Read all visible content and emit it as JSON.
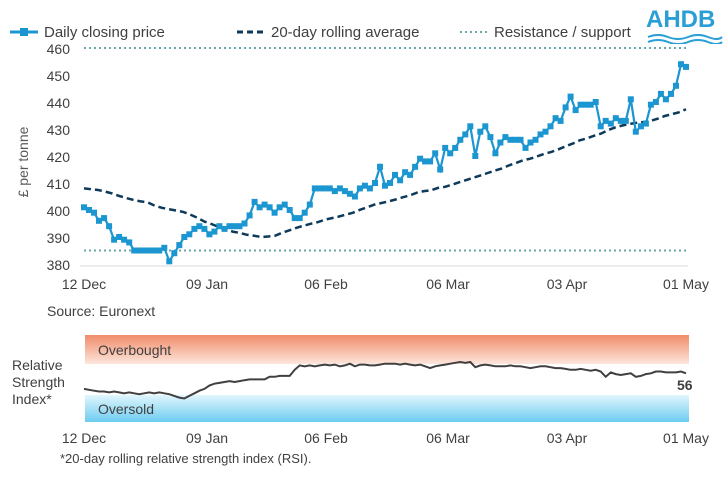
{
  "logo": {
    "text": "AHDB",
    "color": "#2a9fd6"
  },
  "colors": {
    "price": "#1b96d0",
    "average": "#0e3a5a",
    "resistance": "#6aa7a8",
    "rsi": "#404040",
    "overbought": "#f4a58a",
    "oversold": "#7fd0f0"
  },
  "chart_data": [
    {
      "type": "line",
      "x_labels": [
        "12 Dec",
        "09 Jan",
        "06 Feb",
        "06 Mar",
        "03 Apr",
        "01 May"
      ],
      "ylabel": "£ per tonne",
      "ylim": [
        380,
        460
      ],
      "yticks": [
        380,
        390,
        400,
        410,
        420,
        430,
        440,
        450,
        460
      ],
      "legend": {
        "position": "top",
        "entries": [
          "Daily closing price",
          "20-day rolling average",
          "Resistance / support"
        ]
      },
      "series": [
        {
          "name": "Daily closing price",
          "style": "line-square-markers",
          "values": [
            401,
            400,
            399,
            396,
            397,
            394,
            389,
            390,
            389,
            388,
            385,
            385,
            385,
            385,
            385,
            385,
            386,
            381,
            384,
            387,
            390,
            391,
            393,
            394,
            393,
            391,
            392,
            394,
            393,
            394,
            394,
            394,
            395,
            398,
            403,
            401,
            402,
            401,
            399,
            401,
            402,
            400,
            397,
            397,
            399,
            402,
            408,
            408,
            408,
            408,
            407,
            408,
            407,
            406,
            405,
            408,
            409,
            408,
            410,
            416,
            409,
            410,
            413,
            411,
            414,
            413,
            416,
            419,
            418,
            418,
            421,
            415,
            423,
            421,
            423,
            426,
            428,
            431,
            420,
            429,
            431,
            427,
            421,
            425,
            427,
            426,
            426,
            426,
            423,
            425,
            426,
            428,
            429,
            431,
            434,
            433,
            438,
            442,
            437,
            439,
            439,
            439,
            440,
            431,
            433,
            432,
            434,
            433,
            433,
            441,
            429,
            431,
            432,
            439,
            440,
            443,
            441,
            443,
            446,
            454,
            453
          ]
        },
        {
          "name": "20-day rolling average",
          "style": "dashed",
          "values": [
            408,
            407.7,
            407.4,
            406.8,
            406.1,
            405.2,
            404.4,
            403.7,
            403.2,
            402.8,
            401.6,
            400.8,
            400.3,
            399.8,
            399.3,
            398.3,
            397.1,
            395.7,
            394.8,
            393.7,
            392.8,
            392.0,
            391.5,
            390.8,
            390.5,
            390.0,
            390.2,
            390.5,
            391.6,
            392.5,
            393.4,
            394.2,
            394.9,
            395.5,
            396.4,
            397.0,
            397.6,
            398.3,
            399.0,
            400.1,
            401.0,
            402.0,
            402.6,
            403.2,
            403.9,
            404.7,
            405.4,
            406.4,
            407.0,
            407.3,
            408.2,
            408.6,
            409.4,
            410.3,
            411.1,
            412.0,
            412.8,
            413.7,
            414.6,
            415.4,
            416.5,
            417.4,
            418.4,
            419.0,
            419.9,
            420.8,
            421.5,
            422.5,
            423.6,
            424.6,
            425.8,
            426.5,
            427.5,
            428.3,
            429.6,
            430.6,
            431.3,
            431.8,
            432.3,
            432.6,
            433.0,
            433.8,
            434.8,
            435.5,
            436.2,
            437.3
          ]
        },
        {
          "name": "Resistance / support",
          "style": "dotted",
          "levels": [
            460,
            385
          ]
        }
      ]
    },
    {
      "type": "line",
      "title": "Relative Strength Index*",
      "x_labels": [
        "12 Dec",
        "09 Jan",
        "06 Feb",
        "06 Mar",
        "03 Apr",
        "01 May"
      ],
      "bands": [
        {
          "label": "Overbought",
          "range": [
            70,
            100
          ]
        },
        {
          "label": "Oversold",
          "range": [
            0,
            30
          ]
        }
      ],
      "ylim": [
        0,
        100
      ],
      "series": [
        {
          "name": "RSI",
          "values": [
            38,
            37,
            36,
            35,
            35,
            34,
            35,
            34,
            33,
            34,
            33,
            32,
            33,
            34,
            33,
            34,
            33,
            32,
            30,
            28,
            27,
            30,
            33,
            36,
            38,
            42,
            44,
            45,
            46,
            47,
            46,
            47,
            48,
            49,
            49,
            49,
            49,
            52,
            52,
            53,
            53,
            53,
            60,
            65,
            64,
            65,
            64,
            65,
            66,
            65,
            66,
            64,
            65,
            67,
            64,
            66,
            66,
            65,
            65,
            66,
            67,
            67,
            67,
            66,
            67,
            66,
            65,
            66,
            64,
            62,
            64,
            65,
            66,
            67,
            68,
            69,
            68,
            69,
            63,
            65,
            66,
            65,
            64,
            64,
            64,
            65,
            64,
            64,
            63,
            62,
            63,
            64,
            64,
            63,
            62,
            62,
            61,
            60,
            60,
            61,
            60,
            59,
            60,
            58,
            52,
            57,
            55,
            54,
            55,
            56,
            52,
            53,
            55,
            56,
            58,
            58,
            57,
            57,
            57,
            58,
            56
          ]
        }
      ],
      "current_value_label": "56"
    }
  ],
  "texts": {
    "source": "Source: Euronext",
    "rsi_label": "Relative Strength Index*",
    "overbought": "Overbought",
    "oversold": "Oversold",
    "rsi_value": "56",
    "footnote": "*20-day rolling relative strength index (RSI)."
  }
}
